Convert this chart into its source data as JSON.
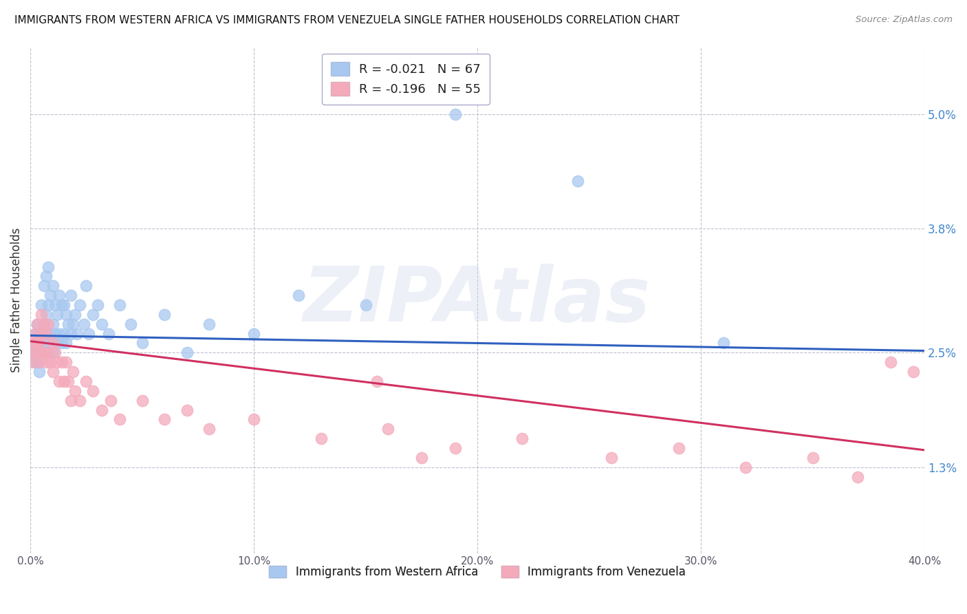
{
  "title": "IMMIGRANTS FROM WESTERN AFRICA VS IMMIGRANTS FROM VENEZUELA SINGLE FATHER HOUSEHOLDS CORRELATION CHART",
  "source": "Source: ZipAtlas.com",
  "ylabel": "Single Father Households",
  "xlim": [
    0.0,
    0.4
  ],
  "ylim": [
    0.004,
    0.057
  ],
  "yticks": [
    0.013,
    0.025,
    0.038,
    0.05
  ],
  "ytick_labels": [
    "1.3%",
    "2.5%",
    "3.8%",
    "5.0%"
  ],
  "xticks": [
    0.0,
    0.1,
    0.2,
    0.3,
    0.4
  ],
  "xtick_labels": [
    "0.0%",
    "10.0%",
    "20.0%",
    "30.0%",
    "40.0%"
  ],
  "series1_label": "Immigrants from Western Africa",
  "series2_label": "Immigrants from Venezuela",
  "series1_R": "-0.021",
  "series1_N": "67",
  "series2_R": "-0.196",
  "series2_N": "55",
  "series1_color": "#A8C8F0",
  "series2_color": "#F4AABB",
  "line1_color": "#3060C0",
  "line2_color": "#D03060",
  "watermark": "ZIPAtlas",
  "background_color": "#FFFFFF",
  "grid_color": "#C0C0D0",
  "trend1_start_y": 0.0268,
  "trend1_end_y": 0.0252,
  "trend2_start_y": 0.0262,
  "trend2_end_y": 0.0148,
  "series1_x": [
    0.001,
    0.001,
    0.002,
    0.002,
    0.002,
    0.003,
    0.003,
    0.003,
    0.003,
    0.004,
    0.004,
    0.004,
    0.005,
    0.005,
    0.005,
    0.006,
    0.006,
    0.006,
    0.007,
    0.007,
    0.007,
    0.008,
    0.008,
    0.008,
    0.009,
    0.009,
    0.01,
    0.01,
    0.01,
    0.011,
    0.011,
    0.012,
    0.012,
    0.013,
    0.013,
    0.014,
    0.014,
    0.015,
    0.015,
    0.016,
    0.016,
    0.017,
    0.018,
    0.018,
    0.019,
    0.02,
    0.021,
    0.022,
    0.024,
    0.025,
    0.026,
    0.028,
    0.03,
    0.032,
    0.035,
    0.04,
    0.045,
    0.05,
    0.06,
    0.07,
    0.08,
    0.1,
    0.12,
    0.15,
    0.19,
    0.245,
    0.31
  ],
  "series1_y": [
    0.025,
    0.026,
    0.024,
    0.027,
    0.025,
    0.026,
    0.024,
    0.028,
    0.025,
    0.027,
    0.023,
    0.026,
    0.025,
    0.027,
    0.03,
    0.026,
    0.028,
    0.032,
    0.025,
    0.029,
    0.033,
    0.026,
    0.03,
    0.034,
    0.027,
    0.031,
    0.025,
    0.028,
    0.032,
    0.027,
    0.03,
    0.026,
    0.029,
    0.027,
    0.031,
    0.026,
    0.03,
    0.027,
    0.03,
    0.026,
    0.029,
    0.028,
    0.027,
    0.031,
    0.028,
    0.029,
    0.027,
    0.03,
    0.028,
    0.032,
    0.027,
    0.029,
    0.03,
    0.028,
    0.027,
    0.03,
    0.028,
    0.026,
    0.029,
    0.025,
    0.028,
    0.027,
    0.031,
    0.03,
    0.05,
    0.043,
    0.026
  ],
  "series2_x": [
    0.001,
    0.001,
    0.002,
    0.002,
    0.003,
    0.003,
    0.003,
    0.004,
    0.004,
    0.005,
    0.005,
    0.005,
    0.006,
    0.006,
    0.007,
    0.007,
    0.008,
    0.008,
    0.009,
    0.01,
    0.01,
    0.011,
    0.012,
    0.013,
    0.014,
    0.015,
    0.016,
    0.017,
    0.018,
    0.019,
    0.02,
    0.022,
    0.025,
    0.028,
    0.032,
    0.036,
    0.04,
    0.05,
    0.06,
    0.07,
    0.08,
    0.1,
    0.13,
    0.16,
    0.19,
    0.22,
    0.26,
    0.29,
    0.32,
    0.35,
    0.37,
    0.385,
    0.395,
    0.155,
    0.175
  ],
  "series2_y": [
    0.026,
    0.024,
    0.025,
    0.027,
    0.025,
    0.026,
    0.028,
    0.024,
    0.026,
    0.025,
    0.027,
    0.029,
    0.025,
    0.028,
    0.024,
    0.027,
    0.025,
    0.028,
    0.024,
    0.026,
    0.023,
    0.025,
    0.024,
    0.022,
    0.024,
    0.022,
    0.024,
    0.022,
    0.02,
    0.023,
    0.021,
    0.02,
    0.022,
    0.021,
    0.019,
    0.02,
    0.018,
    0.02,
    0.018,
    0.019,
    0.017,
    0.018,
    0.016,
    0.017,
    0.015,
    0.016,
    0.014,
    0.015,
    0.013,
    0.014,
    0.012,
    0.024,
    0.023,
    0.022,
    0.014
  ]
}
